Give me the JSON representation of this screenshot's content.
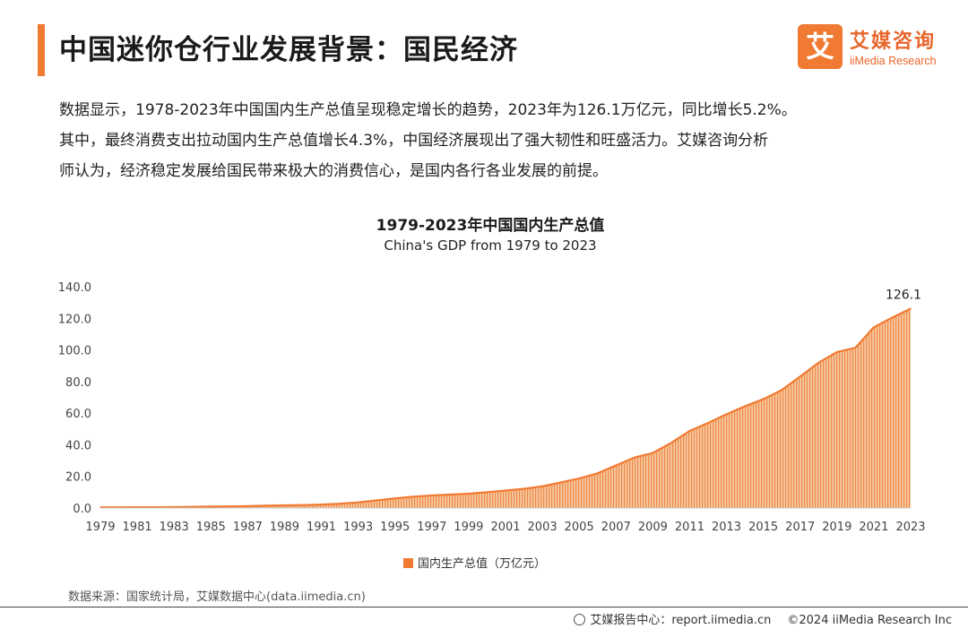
{
  "header": {
    "title": "中国迷你仓行业发展背景：国民经济",
    "brand_mark": "艾",
    "brand_cn": "艾媒咨询",
    "brand_en": "iiMedia Research"
  },
  "intro": {
    "line1": "数据显示，1978-2023年中国国内生产总值呈现稳定增长的趋势，2023年为126.1万亿元，同比增长5.2%。",
    "line2": "其中，最终消费支出拉动国内生产总值增长4.3%，中国经济展现出了强大韧性和旺盛活力。艾媒咨询分析",
    "line3": "师认为，经济稳定发展给国民带来极大的消费信心，是国内各行各业发展的前提。"
  },
  "chart_data": {
    "type": "area",
    "title": "1979-2023年中国国内生产总值",
    "subtitle": "China's GDP from 1979 to 2023",
    "series_name": "国内生产总值（万亿元）",
    "x": [
      1979,
      1980,
      1981,
      1982,
      1983,
      1984,
      1985,
      1986,
      1987,
      1988,
      1989,
      1990,
      1991,
      1992,
      1993,
      1994,
      1995,
      1996,
      1997,
      1998,
      1999,
      2000,
      2001,
      2002,
      2003,
      2004,
      2005,
      2006,
      2007,
      2008,
      2009,
      2010,
      2011,
      2012,
      2013,
      2014,
      2015,
      2016,
      2017,
      2018,
      2019,
      2020,
      2021,
      2022,
      2023
    ],
    "values": [
      0.41,
      0.46,
      0.49,
      0.54,
      0.6,
      0.73,
      0.91,
      1.04,
      1.22,
      1.51,
      1.72,
      1.89,
      2.2,
      2.72,
      3.57,
      4.86,
      6.13,
      7.18,
      7.97,
      8.52,
      9.06,
      10.03,
      11.09,
      12.17,
      13.74,
      16.18,
      18.73,
      21.94,
      27.01,
      31.92,
      34.85,
      41.21,
      48.79,
      53.86,
      59.3,
      64.36,
      68.89,
      74.64,
      83.2,
      91.93,
      98.65,
      101.36,
      114.37,
      120.47,
      126.1
    ],
    "x_tick_labels": [
      "1979",
      "1981",
      "1983",
      "1985",
      "1987",
      "1989",
      "1991",
      "1993",
      "1995",
      "1997",
      "1999",
      "2001",
      "2003",
      "2005",
      "2007",
      "2009",
      "2011",
      "2013",
      "2015",
      "2017",
      "2019",
      "2021",
      "2023"
    ],
    "y_tick_labels": [
      "0.0",
      "20.0",
      "40.0",
      "60.0",
      "80.0",
      "100.0",
      "120.0",
      "140.0"
    ],
    "ylim": [
      0,
      140
    ],
    "end_label": "126.1",
    "color": "#f07a32",
    "legend_position": "bottom"
  },
  "source_note": "数据来源：国家统计局，艾媒数据中心(data.iimedia.cn)",
  "footer": {
    "report_center": "艾媒报告中心：report.iimedia.cn",
    "copyright": "©2024  iiMedia Research  Inc"
  }
}
